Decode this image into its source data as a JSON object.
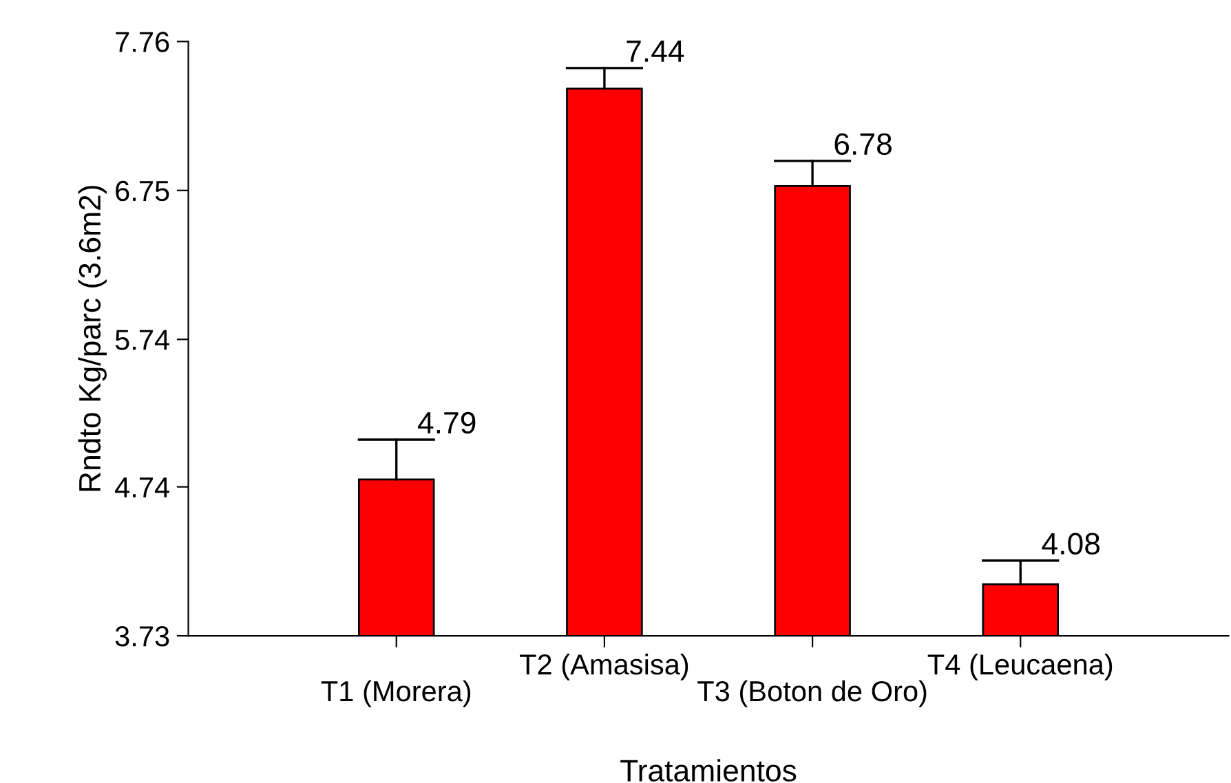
{
  "chart_data": {
    "type": "bar",
    "xlabel": "Tratamientos",
    "ylabel": "Rndto Kg/parc (3.6m2)",
    "categories": [
      "T1 (Morera)",
      "T2 (Amasisa)",
      "T3 (Boton de Oro)",
      "T4 (Leucaena)"
    ],
    "values": [
      4.79,
      7.44,
      6.78,
      4.08
    ],
    "errors": [
      [
        4.79,
        5.06
      ],
      [
        7.44,
        7.58
      ],
      [
        6.78,
        6.95
      ],
      [
        4.08,
        4.24
      ]
    ],
    "color": "#ff0000",
    "ylim": [
      3.73,
      7.76
    ],
    "yticks": [
      3.73,
      4.74,
      5.74,
      6.75,
      7.76
    ],
    "data_labels": true,
    "grid": false,
    "legend": false
  }
}
